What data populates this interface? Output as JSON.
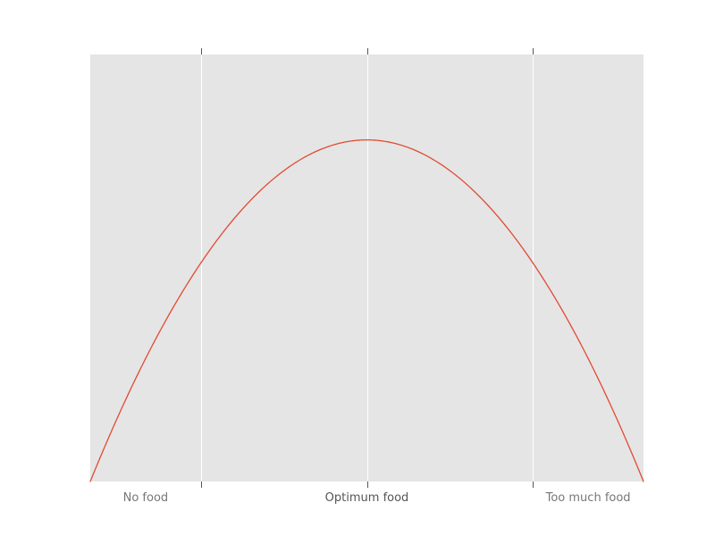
{
  "chart_data": {
    "type": "line",
    "title": "",
    "xlabel": "",
    "ylabel": "",
    "x": [
      0,
      0.05,
      0.1,
      0.15,
      0.2,
      0.25,
      0.3,
      0.35,
      0.4,
      0.45,
      0.5,
      0.55,
      0.6,
      0.65,
      0.7,
      0.75,
      0.8,
      0.85,
      0.9,
      0.95,
      1.0
    ],
    "series": [
      {
        "values": [
          0,
          0.19,
          0.36,
          0.51,
          0.64,
          0.75,
          0.84,
          0.91,
          0.96,
          0.99,
          1.0,
          0.99,
          0.96,
          0.91,
          0.84,
          0.75,
          0.64,
          0.51,
          0.36,
          0.19,
          0
        ],
        "color": "#E24A33"
      }
    ],
    "xlim": [
      0,
      1
    ],
    "ylim": [
      0,
      1.25
    ],
    "x_ticks": [
      0.2,
      0.5,
      0.8
    ],
    "annotations": [
      {
        "text": "No food",
        "x": 0.1,
        "color": "#777777"
      },
      {
        "text": "Optimum food",
        "x": 0.5,
        "color": "#555555"
      },
      {
        "text": "Too much food",
        "x": 0.9,
        "color": "#777777"
      }
    ],
    "grid": true,
    "legend": "none",
    "background": "#E5E5E5",
    "grid_color": "#FFFFFF"
  }
}
